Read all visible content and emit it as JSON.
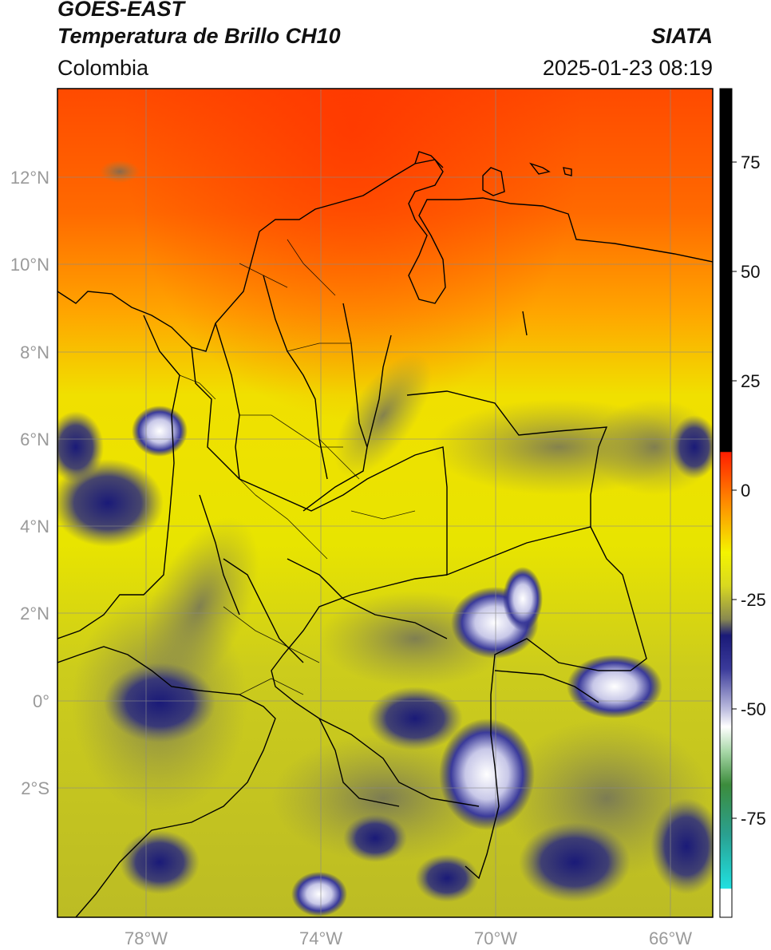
{
  "header": {
    "line1": "GOES-EAST",
    "line2": "Temperatura de Brillo CH10",
    "region": "Colombia",
    "source": "SIATA",
    "datetime": "2025-01-23 08:19"
  },
  "map": {
    "lat_ticks": [
      "12°N",
      "10°N",
      "8°N",
      "6°N",
      "4°N",
      "2°N",
      "0°",
      "2°S"
    ],
    "lon_ticks": [
      "78°W",
      "74°W",
      "70°W",
      "66°W"
    ],
    "extent": {
      "lon_min": -80,
      "lon_max": -65,
      "lat_min": -5,
      "lat_max": 14
    }
  },
  "colorbar": {
    "ticks": [
      "75",
      "50",
      "25",
      "0",
      "-25",
      "-50",
      "-75"
    ],
    "colors": {
      "black": "#000000",
      "red": "#ff1e00",
      "orange": "#ff8c00",
      "yellow": "#f4f400",
      "olive": "#b4b428",
      "navy": "#1a1a78",
      "white": "#ffffff",
      "green": "#3c8c3c",
      "cyan": "#20d8d0"
    }
  }
}
